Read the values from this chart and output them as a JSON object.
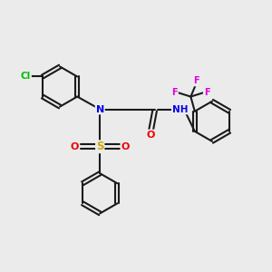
{
  "bg_color": "#ebebeb",
  "atom_colors": {
    "C": "#1a1a1a",
    "N": "#0000ee",
    "O": "#ee0000",
    "S": "#ccaa00",
    "Cl": "#00bb00",
    "F": "#dd00dd",
    "H": "#0000ee"
  },
  "bond_color": "#1a1a1a",
  "bond_lw": 1.5,
  "ring_r": 0.75
}
